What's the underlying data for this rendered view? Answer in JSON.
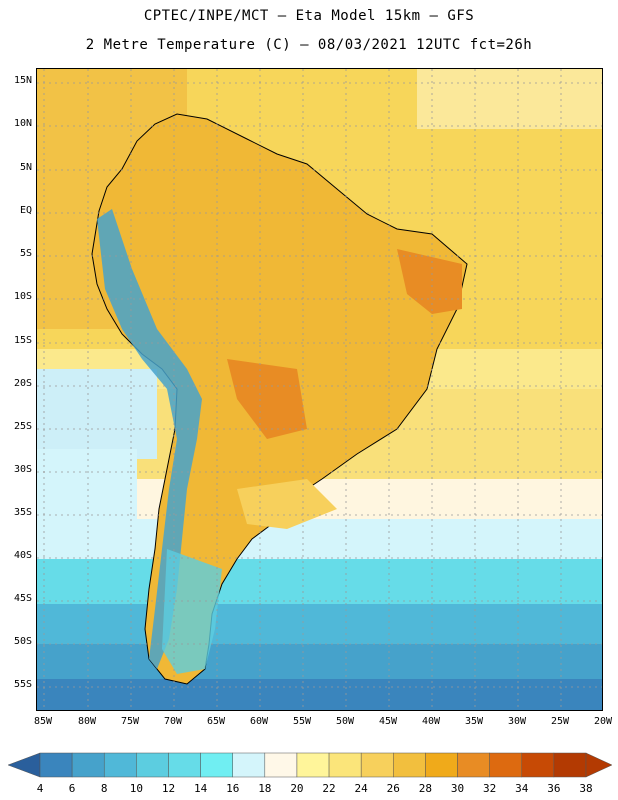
{
  "header": {
    "line1": "CPTEC/INPE/MCT –  Eta Model 15km – GFS",
    "line2": "2 Metre Temperature (C) – 08/03/2021 12UTC fct=26h"
  },
  "lat_labels": [
    "15N",
    "10N",
    "5N",
    "EQ",
    "5S",
    "10S",
    "15S",
    "20S",
    "25S",
    "30S",
    "35S",
    "40S",
    "45S",
    "50S",
    "55S"
  ],
  "lon_labels": [
    "85W",
    "80W",
    "75W",
    "70W",
    "65W",
    "60W",
    "55W",
    "50W",
    "45W",
    "40W",
    "35W",
    "30W",
    "25W",
    "20W"
  ],
  "colorbar": {
    "labels": [
      "4",
      "6",
      "8",
      "10",
      "12",
      "14",
      "16",
      "18",
      "20",
      "22",
      "24",
      "26",
      "28",
      "30",
      "32",
      "34",
      "36",
      "38"
    ],
    "colors": [
      "#2e6faa",
      "#3a85bd",
      "#46a2cb",
      "#50b8d8",
      "#5ccde0",
      "#66dce8",
      "#70eef2",
      "#d4f5fb",
      "#fff8e8",
      "#fff59a",
      "#fbe57a",
      "#f7d05c",
      "#f2bf3e",
      "#f0aa1a",
      "#e88c24",
      "#dd6a10",
      "#c74a05",
      "#b33a02"
    ],
    "min_arrow_color": "#2a5f9c",
    "max_arrow_color": "#b33a02"
  },
  "map": {
    "ocean_color": "#f5d34e",
    "land_base_color": "#f0b836",
    "grid_color": "#999999"
  }
}
